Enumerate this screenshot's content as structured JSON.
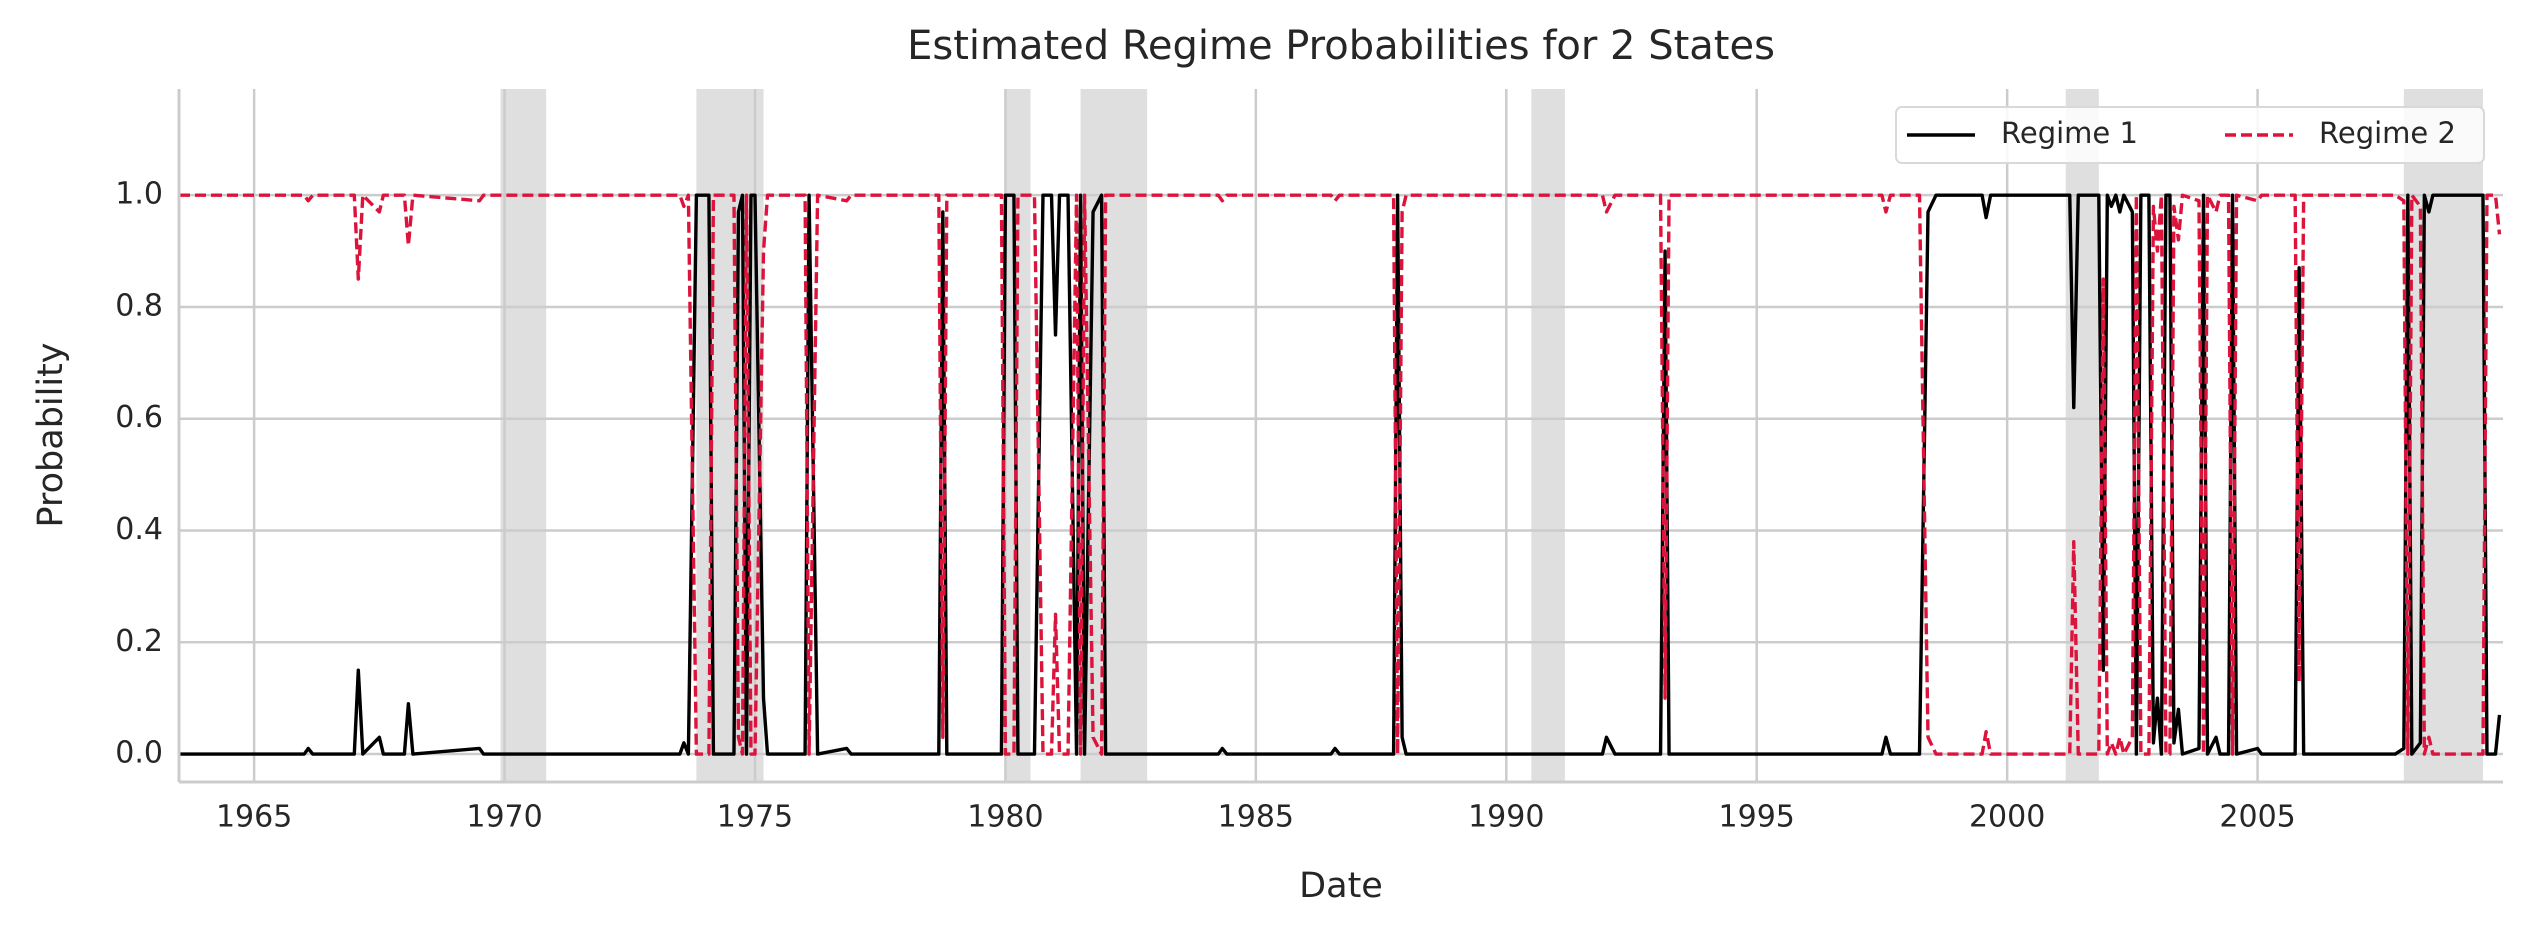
{
  "chart_data": {
    "type": "line",
    "title": "Estimated Regime Probabilities for 2 States",
    "xlabel": "Date",
    "ylabel": "Probability",
    "x": [
      1963.5,
      1966.0,
      1966.08,
      1966.17,
      1967.0,
      1967.08,
      1967.17,
      1967.5,
      1967.58,
      1968.0,
      1968.08,
      1968.17,
      1969.5,
      1969.58,
      1973.5,
      1973.58,
      1973.67,
      1973.83,
      1974.08,
      1974.17,
      1974.58,
      1974.67,
      1974.75,
      1974.83,
      1974.92,
      1975.0,
      1975.17,
      1975.25,
      1976.0,
      1976.08,
      1976.25,
      1976.83,
      1976.92,
      1978.67,
      1978.75,
      1978.83,
      1979.92,
      1980.0,
      1980.17,
      1980.25,
      1980.58,
      1980.75,
      1980.92,
      1981.0,
      1981.08,
      1981.25,
      1981.42,
      1981.5,
      1981.58,
      1981.75,
      1981.92,
      1982.0,
      1984.25,
      1984.33,
      1984.42,
      1986.5,
      1986.58,
      1986.67,
      1987.75,
      1987.83,
      1987.92,
      1988.0,
      1991.92,
      1992.0,
      1992.17,
      1993.08,
      1993.17,
      1993.25,
      1997.5,
      1997.58,
      1997.67,
      1998.25,
      1998.42,
      1998.58,
      1999.5,
      1999.58,
      1999.67,
      2001.25,
      2001.33,
      2001.42,
      2001.83,
      2001.92,
      2002.0,
      2002.08,
      2002.17,
      2002.25,
      2002.33,
      2002.5,
      2002.58,
      2002.67,
      2002.83,
      2002.92,
      2003.0,
      2003.08,
      2003.17,
      2003.25,
      2003.33,
      2003.42,
      2003.5,
      2003.83,
      2003.92,
      2004.0,
      2004.17,
      2004.25,
      2004.42,
      2004.5,
      2004.58,
      2005.0,
      2005.08,
      2005.75,
      2005.83,
      2005.92,
      2007.75,
      2007.92,
      2008.0,
      2008.08,
      2008.25,
      2008.33,
      2008.42,
      2008.5,
      2009.5,
      2009.58,
      2009.75,
      2009.83
    ],
    "series": [
      {
        "name": "Regime 1",
        "color": "#000000",
        "dashed": false,
        "values": [
          0,
          0,
          0.01,
          0,
          0,
          0.15,
          0,
          0.03,
          0,
          0,
          0.09,
          0,
          0.01,
          0,
          0,
          0.02,
          0,
          1,
          1,
          0,
          0,
          0.97,
          1,
          0,
          1,
          1,
          0.1,
          0,
          0,
          1,
          0,
          0.01,
          0,
          0,
          0.97,
          0,
          0,
          1,
          1,
          0,
          0,
          1,
          1,
          0.75,
          1,
          1,
          0,
          1,
          0,
          0.97,
          1,
          0,
          0,
          0.01,
          0,
          0,
          0.01,
          0,
          0,
          1,
          0.03,
          0,
          0,
          0.03,
          0,
          0,
          0.9,
          0,
          0,
          0.03,
          0,
          0,
          0.97,
          1,
          1,
          0.96,
          1,
          1,
          0.62,
          1,
          1,
          0.15,
          1,
          0.98,
          1,
          0.97,
          1,
          0.97,
          0,
          1,
          1,
          0.02,
          0.1,
          0,
          1,
          1,
          0.02,
          0.08,
          0,
          0.01,
          1,
          0,
          0.03,
          0,
          0,
          1,
          0,
          0.01,
          0,
          0,
          0.87,
          0,
          0,
          0.01,
          1,
          0,
          0.02,
          1,
          0.97,
          1,
          1,
          0,
          0,
          0.07
        ]
      },
      {
        "name": "Regime 2",
        "color": "#dc143c",
        "dashed": true,
        "values": [
          1,
          1,
          0.99,
          1,
          1,
          0.85,
          1,
          0.97,
          1,
          1,
          0.91,
          1,
          0.99,
          1,
          1,
          0.98,
          1,
          0,
          0,
          1,
          1,
          0.03,
          0,
          1,
          0,
          0,
          0.9,
          1,
          1,
          0,
          1,
          0.99,
          1,
          1,
          0.03,
          1,
          1,
          0,
          0,
          1,
          1,
          0,
          0,
          0.25,
          0,
          0,
          1,
          0,
          1,
          0.03,
          0,
          1,
          1,
          0.99,
          1,
          1,
          0.99,
          1,
          1,
          0,
          0.97,
          1,
          1,
          0.97,
          1,
          1,
          0.1,
          1,
          1,
          0.97,
          1,
          1,
          0.03,
          0,
          0,
          0.04,
          0,
          0,
          0.38,
          0,
          0,
          0.85,
          0,
          0.02,
          0,
          0.03,
          0,
          0.03,
          1,
          0,
          0,
          0.98,
          0.9,
          1,
          0,
          0,
          0.98,
          0.92,
          1,
          0.99,
          0,
          1,
          0.97,
          1,
          1,
          0,
          1,
          0.99,
          1,
          1,
          0.13,
          1,
          1,
          0.99,
          0,
          1,
          0.98,
          0,
          0.03,
          0,
          0,
          1,
          1,
          0.93
        ]
      }
    ],
    "shaded_periods": [
      [
        1969.92,
        1970.83
      ],
      [
        1973.83,
        1975.17
      ],
      [
        1980.0,
        1980.5
      ],
      [
        1981.5,
        1982.83
      ],
      [
        1990.5,
        1991.17
      ],
      [
        2001.17,
        2001.83
      ],
      [
        2007.92,
        2009.5
      ]
    ],
    "xlim": [
      1963.5,
      2009.9
    ],
    "xticks": [
      1965,
      1970,
      1975,
      1980,
      1985,
      1990,
      1995,
      2000,
      2005
    ],
    "ylim": [
      -0.05,
      1.19
    ],
    "yticks": [
      {
        "value": 0,
        "label": "0.0"
      },
      0.2,
      0.4,
      0.6,
      0.8,
      {
        "value": 1,
        "label": "1.0"
      }
    ],
    "grid": true,
    "legend": "upper right"
  }
}
